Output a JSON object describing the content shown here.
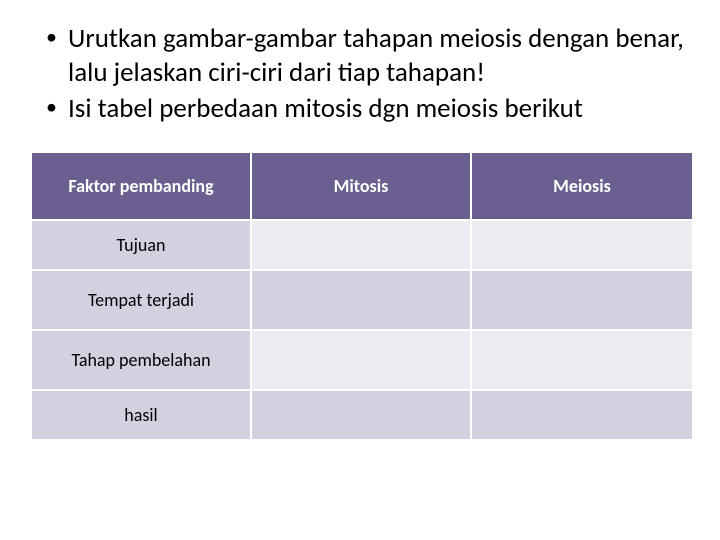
{
  "bullets": [
    "Urutkan gambar-gambar tahapan meiosis dengan benar, lalu jelaskan ciri-ciri dari tiap tahapan!",
    "Isi tabel perbedaan mitosis dgn meiosis berikut"
  ],
  "table": {
    "header": {
      "col1": "Faktor pembanding",
      "col2": "Mitosis",
      "col3": "Meiosis"
    },
    "rows": [
      {
        "label": "Tujuan",
        "mitosis": "",
        "meiosis": ""
      },
      {
        "label": "Tempat terjadi",
        "mitosis": "",
        "meiosis": ""
      },
      {
        "label": "Tahap pembelahan",
        "mitosis": "",
        "meiosis": ""
      },
      {
        "label": "hasil",
        "mitosis": "",
        "meiosis": ""
      }
    ],
    "colors": {
      "header_bg": "#6a5f8e",
      "header_text": "#ffffff",
      "row_label_bg": "#d5d0e0",
      "row_cell_bg_light": "#ecebf2",
      "row_cell_bg_alt": "#d5d0e0",
      "border": "#ffffff"
    },
    "fontsize_header": 18,
    "fontsize_body": 18
  }
}
